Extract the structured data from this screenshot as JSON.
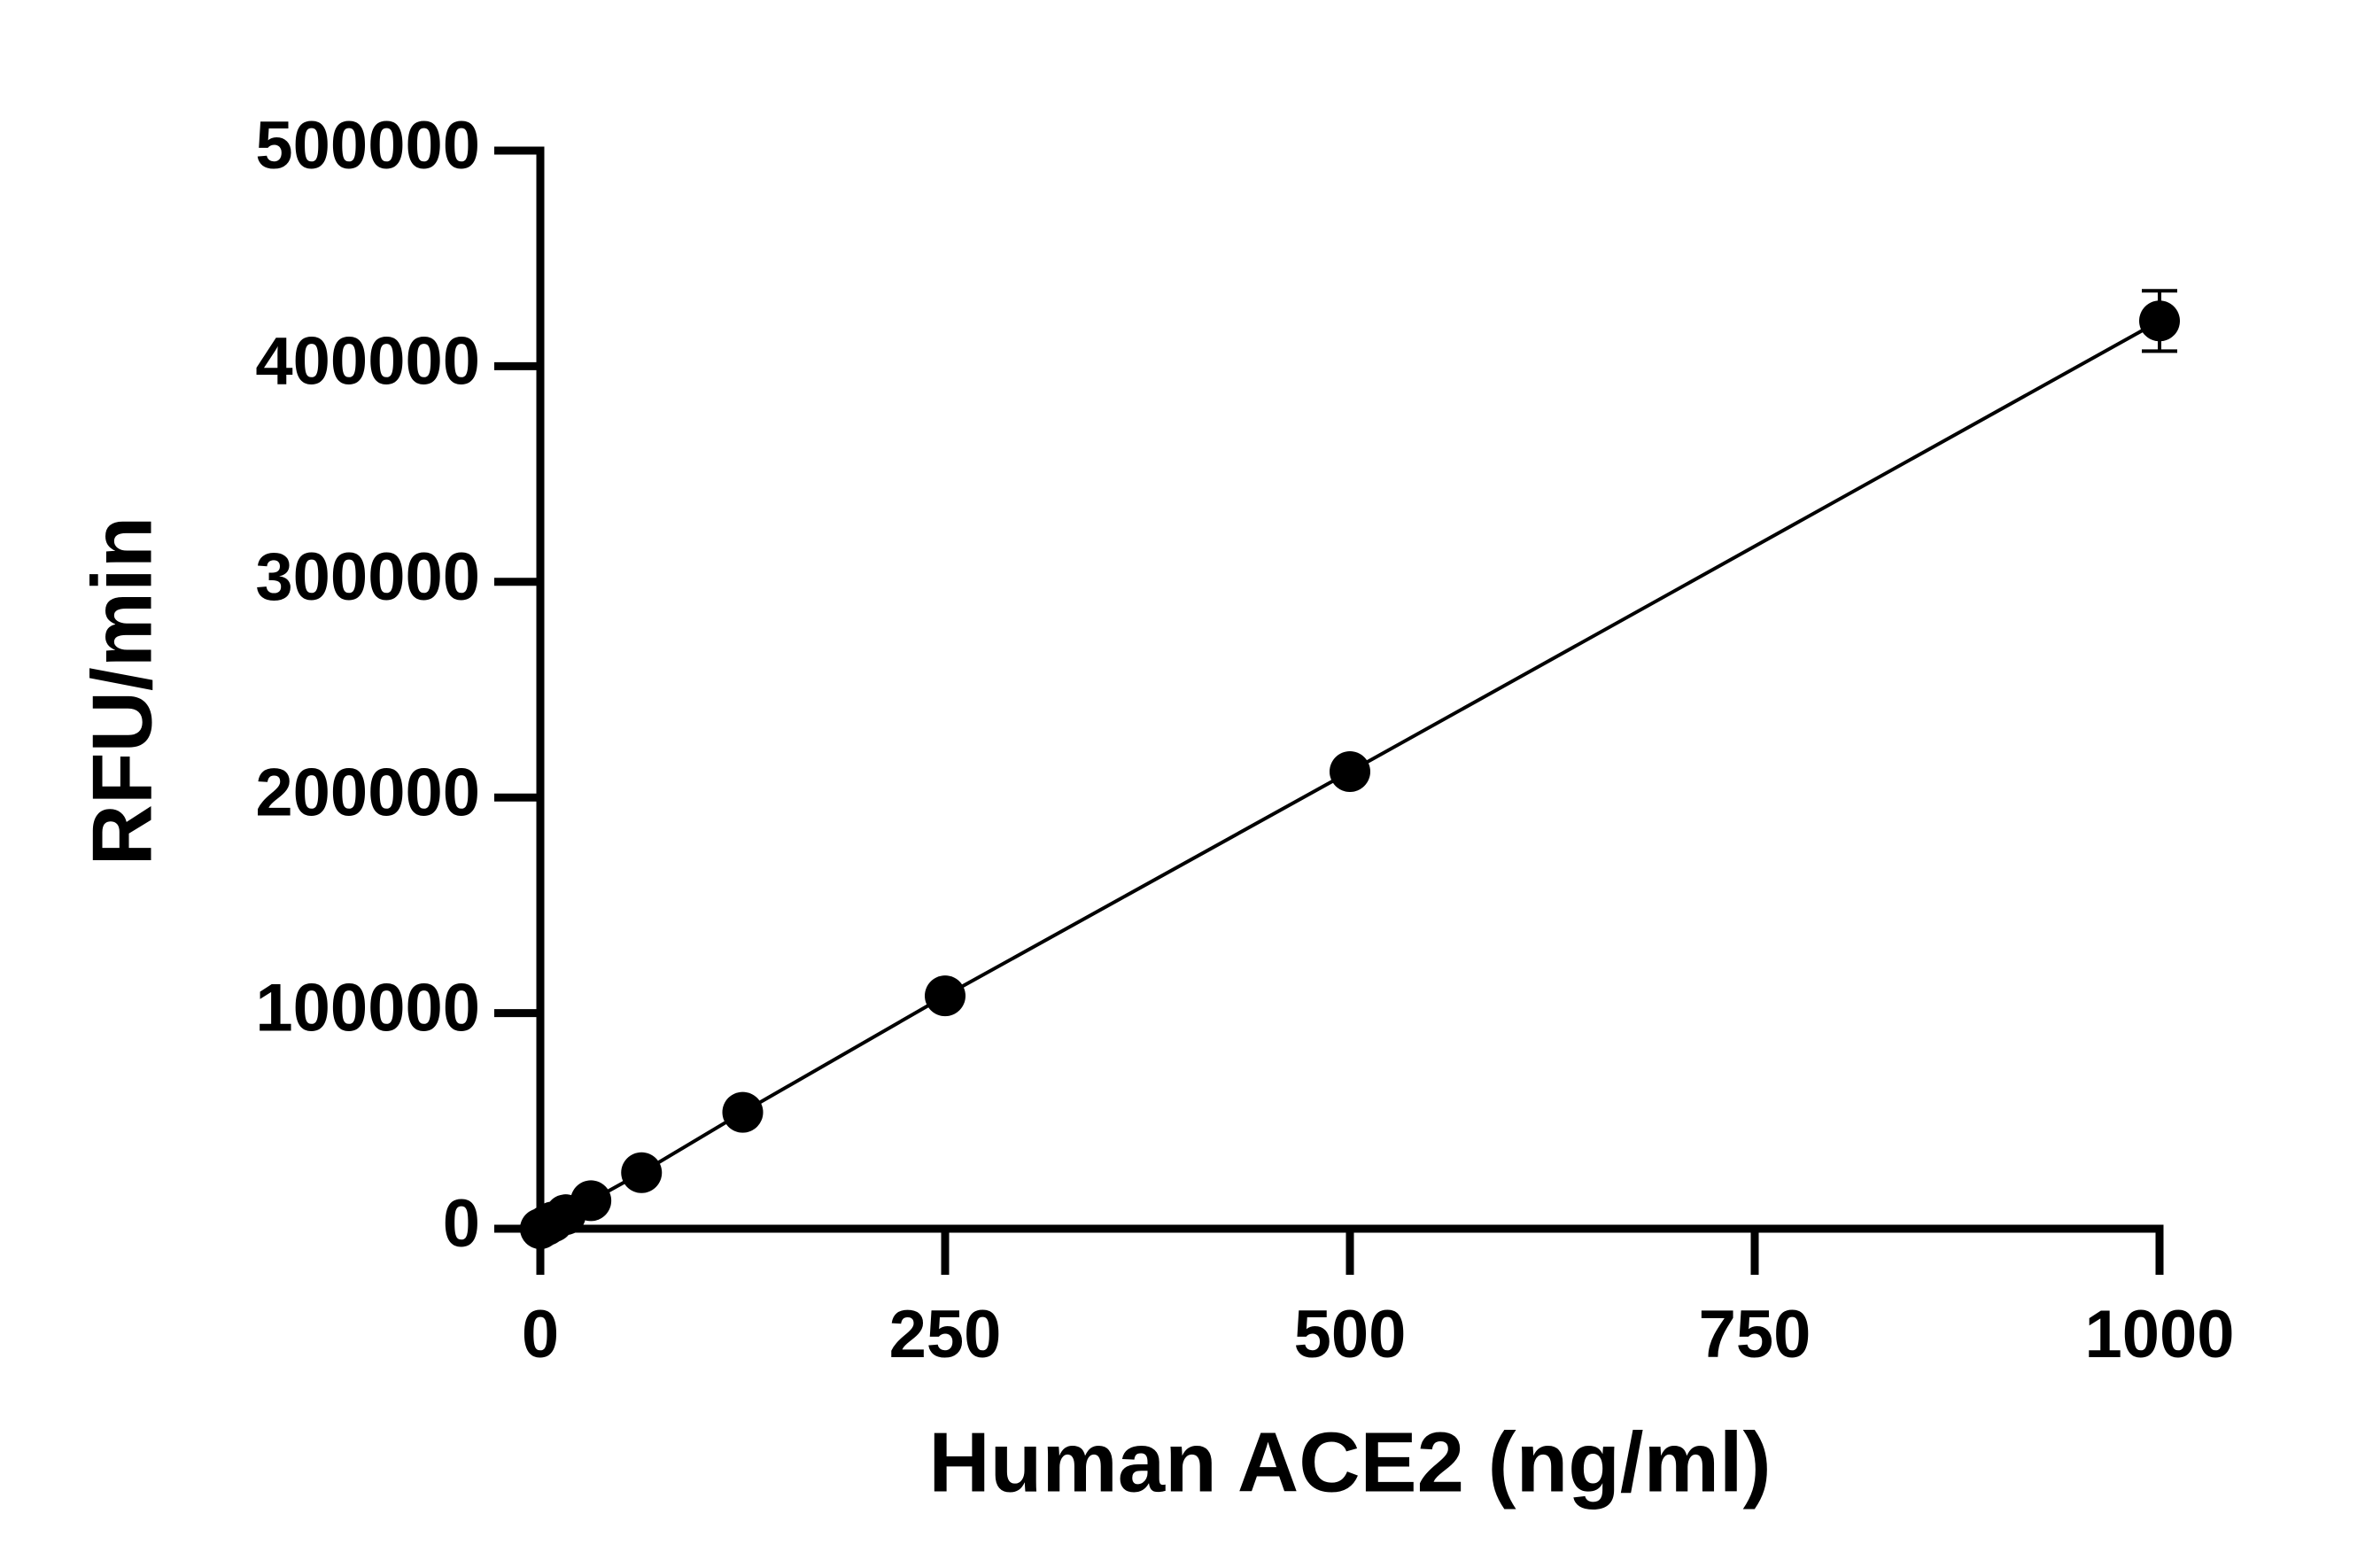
{
  "chart_data": {
    "type": "scatter",
    "x_label": "Human ACE2 (ng/ml)",
    "y_label": "RFU/min",
    "x": [
      0,
      3.9,
      7.8,
      15.6,
      31.25,
      62.5,
      125,
      250,
      500,
      1000
    ],
    "series": [
      {
        "color": "#000000",
        "values": [
          0,
          1600,
          3200,
          6500,
          13000,
          26000,
          54000,
          108000,
          212000,
          421000
        ],
        "errors": [
          null,
          null,
          null,
          null,
          null,
          null,
          null,
          null,
          null,
          14000
        ]
      }
    ],
    "xlim": [
      0,
      1000
    ],
    "xticks": [
      0,
      250,
      500,
      750,
      1000
    ],
    "ylim": [
      0,
      500000
    ],
    "yticks": [
      0,
      100000,
      200000,
      300000,
      400000,
      500000
    ],
    "grid": false
  }
}
